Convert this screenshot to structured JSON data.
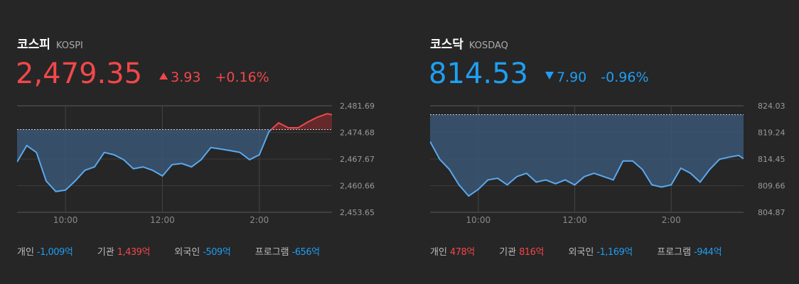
{
  "colors": {
    "up": "#f2474a",
    "down": "#1f9ef2",
    "line": "#5aa9ee",
    "fill": "#3a5674",
    "up_fill": "#6e2a2c",
    "baseline": "#cfcfcf"
  },
  "panels": [
    {
      "title": "코스피",
      "subtitle": "KOSPI",
      "price": "2,479.35",
      "direction": "up",
      "change": "3.93",
      "change_pct": "+0.16%",
      "chart_data": {
        "type": "line",
        "x": [
          9.0,
          9.2,
          9.4,
          9.6,
          9.8,
          10.0,
          10.2,
          10.4,
          10.6,
          10.8,
          11.0,
          11.2,
          11.4,
          11.6,
          11.8,
          12.0,
          12.2,
          12.4,
          12.6,
          12.8,
          13.0,
          13.2,
          13.4,
          13.6,
          13.8,
          14.0,
          14.2,
          14.4,
          14.6,
          14.8,
          15.0,
          15.2,
          15.4,
          15.5
        ],
        "values": [
          2466.9,
          2471.2,
          2469.4,
          2461.9,
          2459.1,
          2459.5,
          2461.9,
          2464.7,
          2465.6,
          2469.4,
          2468.8,
          2467.5,
          2465.1,
          2465.6,
          2464.7,
          2463.2,
          2466.2,
          2466.5,
          2465.6,
          2467.5,
          2470.7,
          2470.3,
          2469.9,
          2469.4,
          2467.5,
          2468.8,
          2474.9,
          2477.2,
          2475.9,
          2475.9,
          2477.4,
          2478.7,
          2479.6,
          2479.35
        ],
        "baseline": 2475.42,
        "xlim": [
          9,
          15.5
        ],
        "xticks": [
          {
            "value": 10,
            "label": "10:00"
          },
          {
            "value": 12,
            "label": "12:00"
          },
          {
            "value": 14,
            "label": "2:00"
          }
        ],
        "ylim": [
          2453.65,
          2481.69
        ],
        "yticks": [
          {
            "value": 2453.65,
            "label": "2,453.65"
          },
          {
            "value": 2460.66,
            "label": "2,460.66"
          },
          {
            "value": 2467.67,
            "label": "2,467.67"
          },
          {
            "value": 2474.68,
            "label": "2,474.68"
          },
          {
            "value": 2481.69,
            "label": "2,481.69"
          }
        ],
        "grid": true
      },
      "investors": [
        {
          "label": "개인",
          "value": "-1,009",
          "unit": "억"
        },
        {
          "label": "기관",
          "value": "1,439",
          "unit": "억"
        },
        {
          "label": "외국인",
          "value": "-509",
          "unit": "억"
        },
        {
          "label": "프로그램",
          "value": "-656",
          "unit": "억"
        }
      ]
    },
    {
      "title": "코스닥",
      "subtitle": "KOSDAQ",
      "price": "814.53",
      "direction": "down",
      "change": "7.90",
      "change_pct": "-0.96%",
      "chart_data": {
        "type": "line",
        "x": [
          9.0,
          9.2,
          9.4,
          9.6,
          9.8,
          10.0,
          10.2,
          10.4,
          10.6,
          10.8,
          11.0,
          11.2,
          11.4,
          11.6,
          11.8,
          12.0,
          12.2,
          12.4,
          12.6,
          12.8,
          13.0,
          13.2,
          13.4,
          13.6,
          13.8,
          14.0,
          14.2,
          14.4,
          14.6,
          14.8,
          15.0,
          15.2,
          15.4,
          15.5
        ],
        "values": [
          817.6,
          814.4,
          812.6,
          809.8,
          807.8,
          809.0,
          810.7,
          811.0,
          809.8,
          811.3,
          811.9,
          810.3,
          810.7,
          810.0,
          810.7,
          809.8,
          811.3,
          811.9,
          811.3,
          810.7,
          814.1,
          814.1,
          812.6,
          809.8,
          809.4,
          809.8,
          812.8,
          811.9,
          810.3,
          812.6,
          814.4,
          814.8,
          815.1,
          814.53
        ],
        "baseline": 822.43,
        "xlim": [
          9,
          15.5
        ],
        "xticks": [
          {
            "value": 10,
            "label": "10:00"
          },
          {
            "value": 12,
            "label": "12:00"
          },
          {
            "value": 14,
            "label": "2:00"
          }
        ],
        "ylim": [
          804.87,
          824.03
        ],
        "yticks": [
          {
            "value": 804.87,
            "label": "804.87"
          },
          {
            "value": 809.66,
            "label": "809.66"
          },
          {
            "value": 814.45,
            "label": "814.45"
          },
          {
            "value": 819.24,
            "label": "819.24"
          },
          {
            "value": 824.03,
            "label": "824.03"
          }
        ],
        "grid": true
      },
      "investors": [
        {
          "label": "개인",
          "value": "478",
          "unit": "억"
        },
        {
          "label": "기관",
          "value": "816",
          "unit": "억"
        },
        {
          "label": "외국인",
          "value": "-1,169",
          "unit": "억"
        },
        {
          "label": "프로그램",
          "value": "-944",
          "unit": "억"
        }
      ]
    }
  ]
}
